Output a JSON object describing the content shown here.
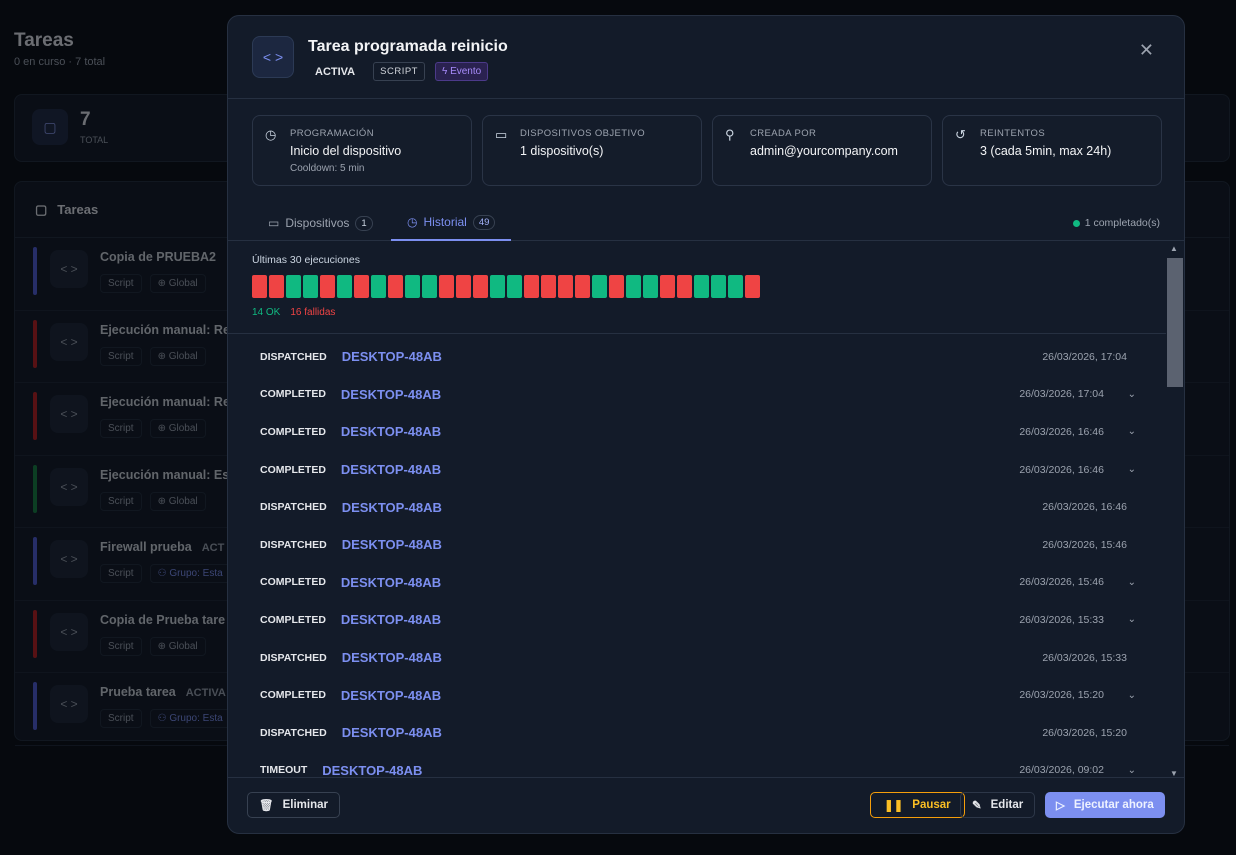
{
  "page": {
    "title": "Tareas",
    "subtitle": "0 en curso · 7 total",
    "stat": {
      "value": "7",
      "label": "TOTAL"
    },
    "list_title": "Tareas",
    "tasks": [
      {
        "name": "Copia de PRUEBA2",
        "status": "",
        "type": "Script",
        "scope": "Global",
        "color": "#4f5bd5"
      },
      {
        "name": "Ejecución manual: Re",
        "status": "",
        "type": "Script",
        "scope": "Global",
        "color": "#b91c1c"
      },
      {
        "name": "Ejecución manual: Re",
        "status": "",
        "type": "Script",
        "scope": "Global",
        "color": "#b91c1c"
      },
      {
        "name": "Ejecución manual: Es",
        "status": "",
        "type": "Script",
        "scope": "Global",
        "color": "#15803d"
      },
      {
        "name": "Firewall prueba",
        "status": "ACT",
        "type": "Script",
        "scope": "Grupo: Esta",
        "color": "#4f5bd5"
      },
      {
        "name": "Copia de Prueba tare",
        "status": "",
        "type": "Script",
        "scope": "Global",
        "color": "#b91c1c"
      },
      {
        "name": "Prueba tarea",
        "status": "ACTIVA",
        "type": "Script",
        "scope": "Grupo: Esta",
        "color": "#4f5bd5"
      }
    ]
  },
  "modal": {
    "title": "Tarea programada reinicio",
    "status": "ACTIVA",
    "type_badge": "SCRIPT",
    "trigger_badge": "Evento",
    "info": [
      {
        "icon": "clock-icon",
        "label": "PROGRAMACIÓN",
        "value": "Inicio del dispositivo",
        "sub": "Cooldown: 5 min"
      },
      {
        "icon": "monitor-icon",
        "label": "DISPOSITIVOS OBJETIVO",
        "value": "1 dispositivo(s)",
        "sub": ""
      },
      {
        "icon": "user-icon",
        "label": "CREADA POR",
        "value": "admin@yourcompany.com",
        "sub": ""
      },
      {
        "icon": "retry-icon",
        "label": "REINTENTOS",
        "value": "3 (cada 5min, max 24h)",
        "sub": ""
      }
    ],
    "tabs": [
      {
        "label": "Dispositivos",
        "count": "1"
      },
      {
        "label": "Historial",
        "count": "49",
        "active": true
      }
    ],
    "completed": "1 completado(s)",
    "summary": {
      "title": "Últimas 30 ejecuciones",
      "ok": "14 OK",
      "failed": "16 fallidas",
      "runs": [
        "fail",
        "fail",
        "ok",
        "ok",
        "fail",
        "ok",
        "fail",
        "ok",
        "fail",
        "ok",
        "ok",
        "fail",
        "fail",
        "fail",
        "ok",
        "ok",
        "fail",
        "fail",
        "fail",
        "fail",
        "ok",
        "fail",
        "ok",
        "ok",
        "fail",
        "fail",
        "ok",
        "ok",
        "ok",
        "fail"
      ],
      "colors": {
        "ok": "#10b981",
        "fail": "#ef4444"
      }
    },
    "history": [
      {
        "status": "DISPATCHED",
        "device": "DESKTOP-48AB",
        "date": "26/03/2026, 17:04",
        "expandable": false
      },
      {
        "status": "COMPLETED",
        "device": "DESKTOP-48AB",
        "date": "26/03/2026, 17:04",
        "expandable": true
      },
      {
        "status": "COMPLETED",
        "device": "DESKTOP-48AB",
        "date": "26/03/2026, 16:46",
        "expandable": true
      },
      {
        "status": "COMPLETED",
        "device": "DESKTOP-48AB",
        "date": "26/03/2026, 16:46",
        "expandable": true
      },
      {
        "status": "DISPATCHED",
        "device": "DESKTOP-48AB",
        "date": "26/03/2026, 16:46",
        "expandable": false
      },
      {
        "status": "DISPATCHED",
        "device": "DESKTOP-48AB",
        "date": "26/03/2026, 15:46",
        "expandable": false
      },
      {
        "status": "COMPLETED",
        "device": "DESKTOP-48AB",
        "date": "26/03/2026, 15:46",
        "expandable": true
      },
      {
        "status": "COMPLETED",
        "device": "DESKTOP-48AB",
        "date": "26/03/2026, 15:33",
        "expandable": true
      },
      {
        "status": "DISPATCHED",
        "device": "DESKTOP-48AB",
        "date": "26/03/2026, 15:33",
        "expandable": false
      },
      {
        "status": "COMPLETED",
        "device": "DESKTOP-48AB",
        "date": "26/03/2026, 15:20",
        "expandable": true
      },
      {
        "status": "DISPATCHED",
        "device": "DESKTOP-48AB",
        "date": "26/03/2026, 15:20",
        "expandable": false
      },
      {
        "status": "TIMEOUT",
        "device": "DESKTOP-48AB",
        "date": "26/03/2026, 09:02",
        "expandable": true
      }
    ],
    "buttons": {
      "delete": "Eliminar",
      "pause": "Pausar",
      "edit": "Editar",
      "run": "Ejecutar ahora"
    }
  }
}
